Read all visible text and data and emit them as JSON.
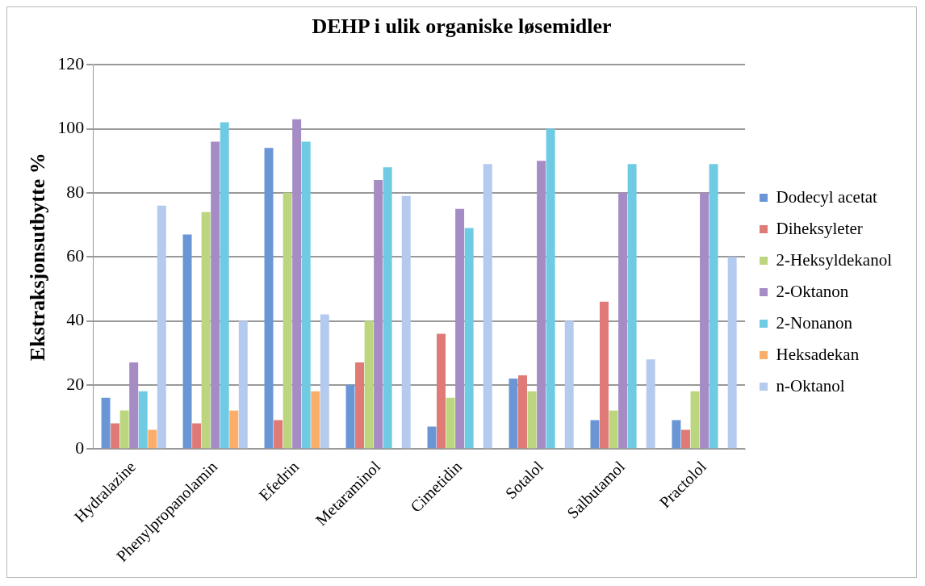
{
  "chart_data": {
    "type": "bar",
    "title": "DEHP i ulik organiske løsemidler",
    "ylabel": "Ekstraksjonsutbytte %",
    "categories": [
      "Hydralazine",
      "Phenylpropanolamin",
      "Efedrin",
      "Metaraminol",
      "Cimetidin",
      "Sotalol",
      "Salbutamol",
      "Practolol"
    ],
    "series": [
      {
        "name": "Dodecyl acetat",
        "color": "#6b96d6",
        "values": [
          16,
          67,
          94,
          20,
          7,
          22,
          9,
          9
        ]
      },
      {
        "name": "Diheksyleter",
        "color": "#e07a76",
        "values": [
          8,
          8,
          9,
          27,
          36,
          23,
          46,
          6
        ]
      },
      {
        "name": "2-Heksyldekanol",
        "color": "#bcd67f",
        "values": [
          12,
          74,
          80,
          40,
          16,
          18,
          12,
          18
        ]
      },
      {
        "name": "2-Oktanon",
        "color": "#a68cc4",
        "values": [
          27,
          96,
          103,
          84,
          75,
          90,
          80,
          80
        ]
      },
      {
        "name": "2-Nonanon",
        "color": "#6fcbe3",
        "values": [
          18,
          102,
          96,
          88,
          69,
          100,
          89,
          89
        ]
      },
      {
        "name": "Heksadekan",
        "color": "#fbae6a",
        "values": [
          6,
          12,
          18,
          null,
          null,
          null,
          null,
          null
        ]
      },
      {
        "name": "n-Oktanol",
        "color": "#b4caee",
        "values": [
          76,
          40,
          42,
          79,
          89,
          40,
          28,
          60
        ]
      }
    ],
    "ylim": [
      0,
      120
    ],
    "yticks": [
      0,
      20,
      40,
      60,
      80,
      100,
      120
    ],
    "grid": "y",
    "legend": "right"
  }
}
